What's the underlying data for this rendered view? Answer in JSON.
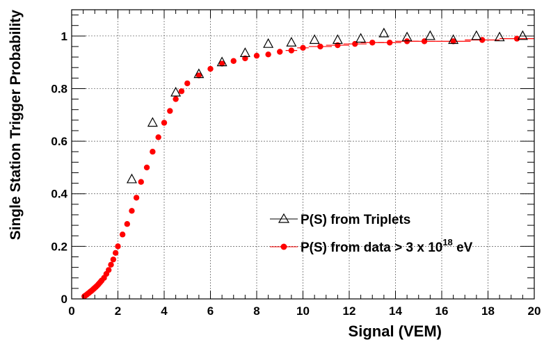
{
  "chart_data": {
    "type": "scatter",
    "xlabel": "Signal (VEM)",
    "ylabel": "Single Station Trigger Probability",
    "xlim": [
      0,
      20
    ],
    "ylim": [
      0,
      1.1
    ],
    "grid": true,
    "legend_placement": "center-right",
    "x_ticks": [
      0,
      2,
      4,
      6,
      8,
      10,
      12,
      14,
      16,
      18,
      20
    ],
    "y_ticks": [
      0,
      0.2,
      0.4,
      0.6,
      0.8,
      1
    ],
    "x_tick_labels": [
      "0",
      "2",
      "4",
      "6",
      "8",
      "10",
      "12",
      "14",
      "16",
      "18",
      "20"
    ],
    "y_tick_labels": [
      "0",
      "0.2",
      "0.4",
      "0.6",
      "0.8",
      "1"
    ],
    "series": [
      {
        "name": "P(S) from Triplets",
        "marker": "open-triangle",
        "color": "#000000",
        "x": [
          2.6,
          3.5,
          4.5,
          5.5,
          6.5,
          7.5,
          8.5,
          9.5,
          10.5,
          11.5,
          12.5,
          13.5,
          14.5,
          15.5,
          16.5,
          17.5,
          18.5,
          19.5
        ],
        "y": [
          0.455,
          0.67,
          0.785,
          0.855,
          0.9,
          0.935,
          0.97,
          0.975,
          0.985,
          0.985,
          0.99,
          1.01,
          0.995,
          1.0,
          0.985,
          1.0,
          0.995,
          1.0
        ]
      },
      {
        "name_prefix": "P(S) from data > 3 x 10",
        "name_exponent": "18",
        "name_suffix": " eV",
        "marker": "filled-circle",
        "color": "#ff0000",
        "x": [
          0.55,
          0.6,
          0.65,
          0.7,
          0.75,
          0.8,
          0.85,
          0.9,
          0.95,
          1.0,
          1.05,
          1.1,
          1.15,
          1.2,
          1.25,
          1.3,
          1.4,
          1.5,
          1.6,
          1.7,
          1.8,
          1.9,
          2.0,
          2.2,
          2.4,
          2.6,
          2.8,
          3.0,
          3.25,
          3.5,
          3.75,
          4.0,
          4.25,
          4.5,
          4.75,
          5.0,
          5.5,
          6.0,
          6.5,
          7.0,
          7.5,
          8.0,
          8.5,
          9.0,
          9.5,
          10.0,
          10.75,
          11.5,
          12.25,
          13.0,
          13.75,
          14.5,
          15.25,
          16.5,
          17.75,
          19.25
        ],
        "y": [
          0.01,
          0.013,
          0.016,
          0.02,
          0.023,
          0.027,
          0.03,
          0.034,
          0.038,
          0.042,
          0.046,
          0.05,
          0.055,
          0.06,
          0.065,
          0.07,
          0.08,
          0.095,
          0.11,
          0.13,
          0.15,
          0.175,
          0.2,
          0.245,
          0.285,
          0.335,
          0.385,
          0.445,
          0.5,
          0.56,
          0.615,
          0.67,
          0.715,
          0.76,
          0.79,
          0.82,
          0.85,
          0.875,
          0.895,
          0.905,
          0.915,
          0.925,
          0.93,
          0.94,
          0.945,
          0.955,
          0.96,
          0.965,
          0.97,
          0.975,
          0.975,
          0.98,
          0.98,
          0.98,
          0.985,
          0.99
        ],
        "xerr": [
          0,
          0,
          0,
          0,
          0,
          0,
          0,
          0,
          0,
          0,
          0,
          0,
          0,
          0,
          0,
          0,
          0,
          0,
          0,
          0,
          0,
          0,
          0,
          0,
          0,
          0,
          0,
          0,
          0,
          0,
          0,
          0,
          0,
          0,
          0,
          0,
          0,
          0,
          0,
          0,
          0,
          0,
          0,
          0,
          0.25,
          0.25,
          0.5,
          0.5,
          0.5,
          0.5,
          0.5,
          0.5,
          0.5,
          0.75,
          0.75,
          0.75
        ]
      }
    ]
  }
}
